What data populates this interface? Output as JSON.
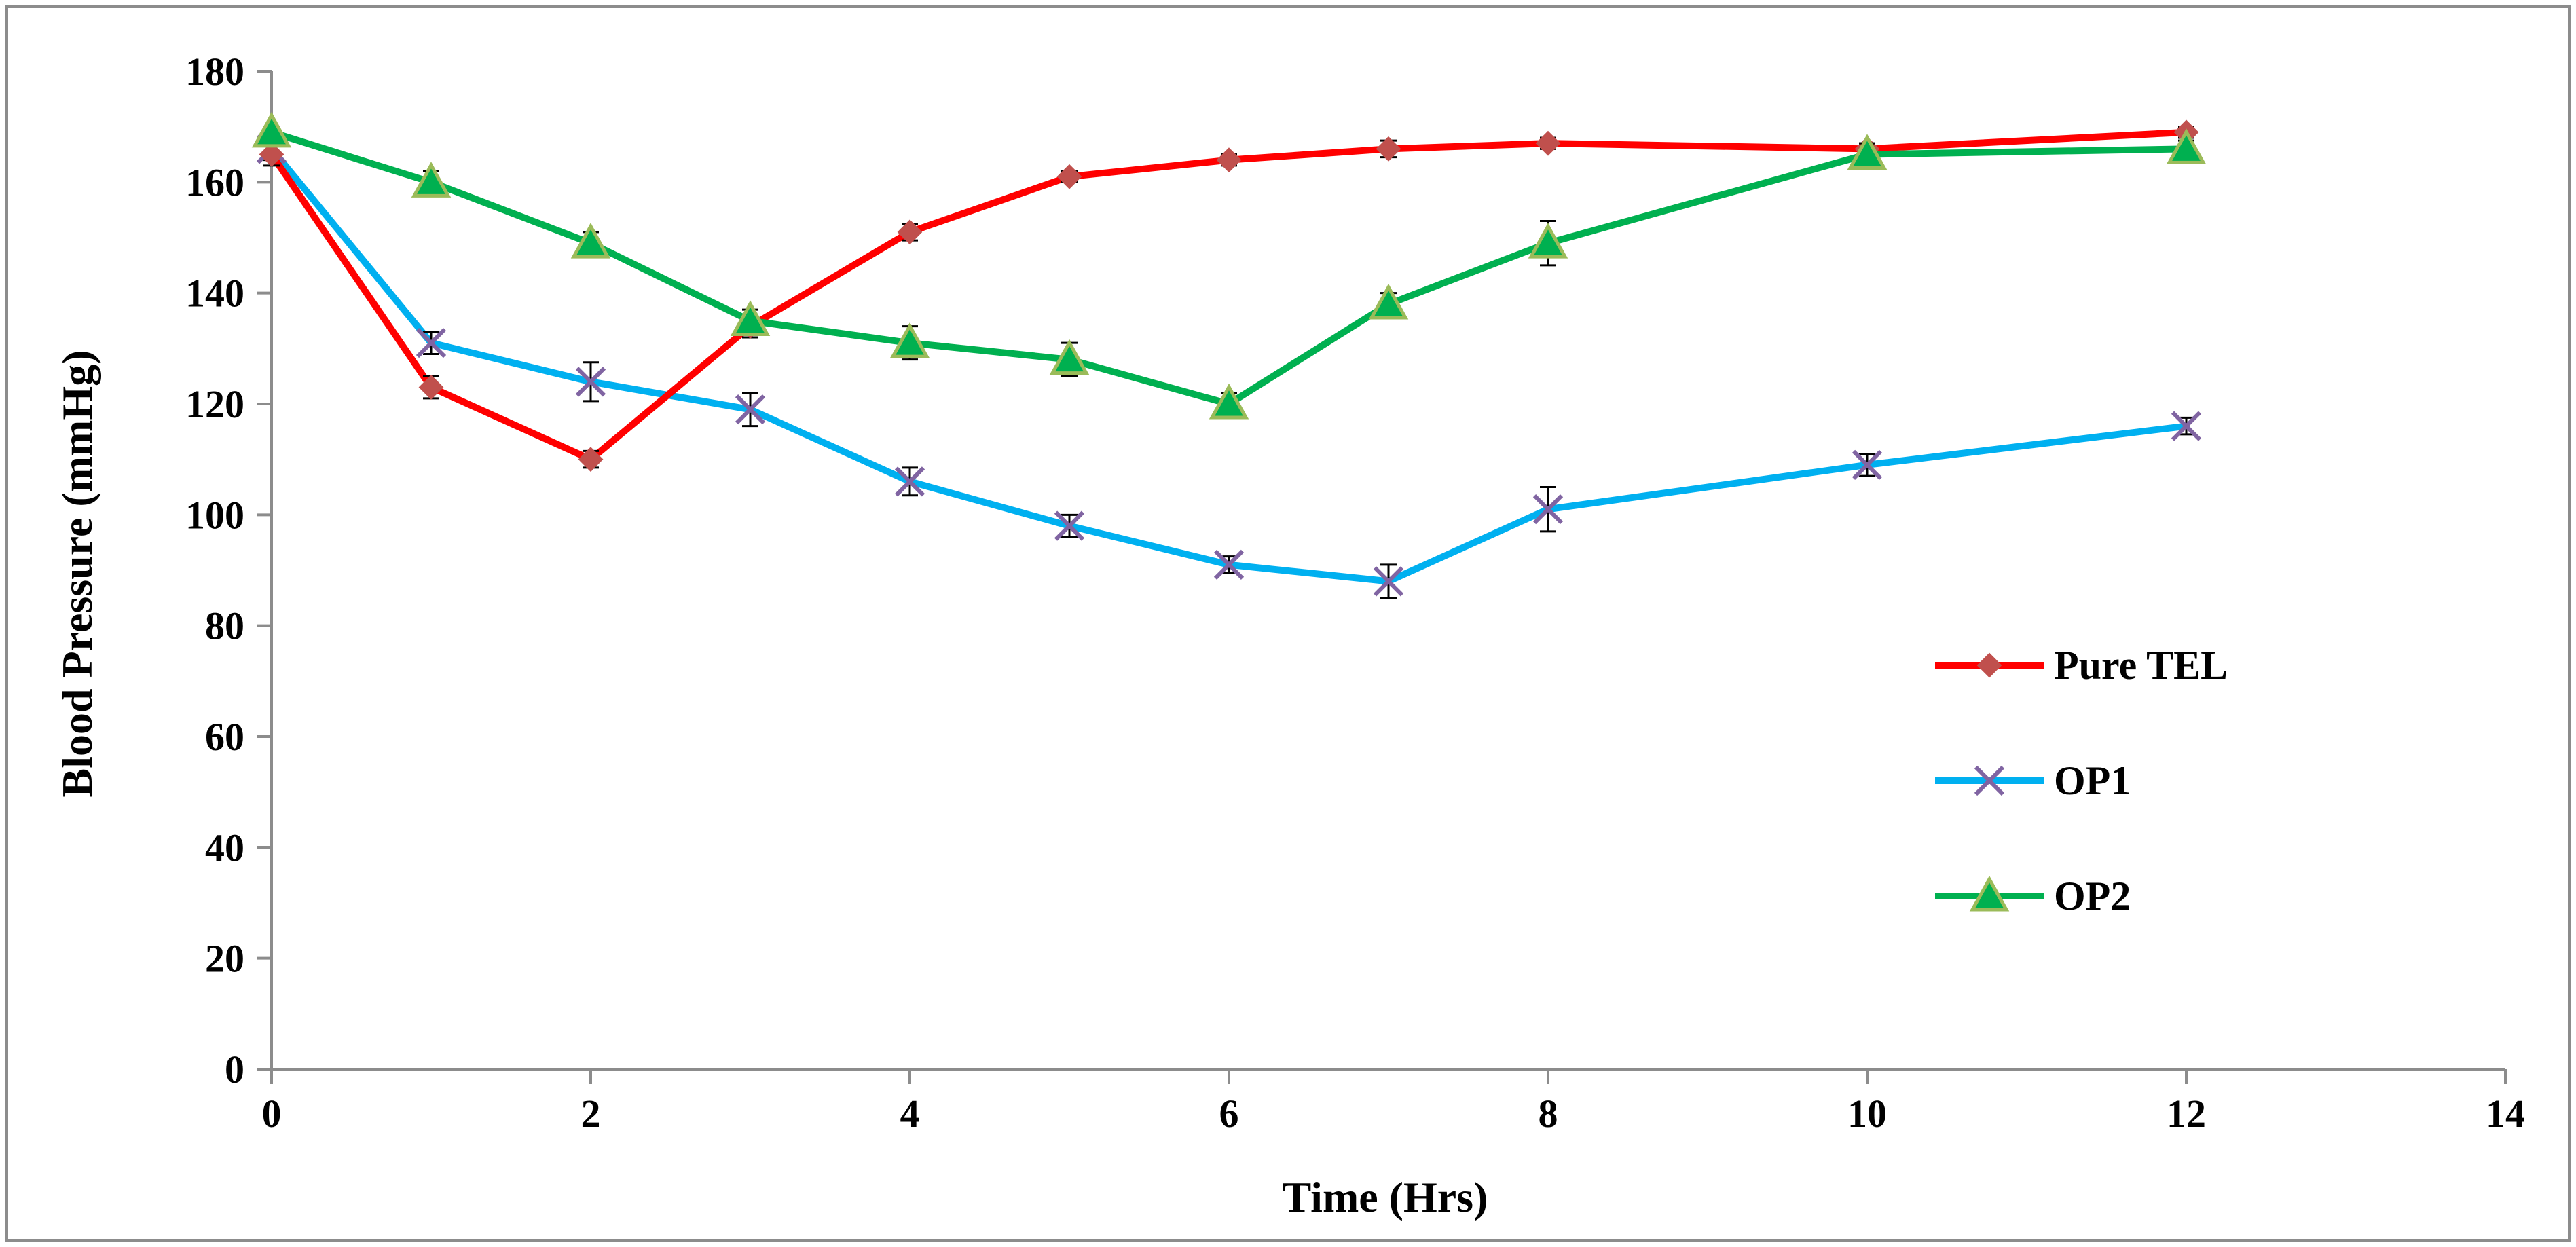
{
  "chart_data": {
    "type": "line",
    "title": "",
    "xlabel": "Time (Hrs)",
    "ylabel": "Blood  Pressure (mmHg)",
    "xlim": [
      0,
      14
    ],
    "ylim": [
      0,
      180
    ],
    "xticks": [
      0,
      2,
      4,
      6,
      8,
      10,
      12,
      14
    ],
    "yticks": [
      0,
      20,
      40,
      60,
      80,
      100,
      120,
      140,
      160,
      180
    ],
    "grid": false,
    "legend_position": "right",
    "series": [
      {
        "name": "Pure TEL",
        "color": "#ff0000",
        "marker": "diamond",
        "marker_color": "#c0504d",
        "x": [
          0,
          1,
          2,
          3,
          4,
          5,
          6,
          7,
          8,
          10,
          12
        ],
        "values": [
          165,
          123,
          110,
          134,
          151,
          161,
          164,
          166,
          167,
          166,
          169
        ],
        "errors": [
          2,
          2,
          1.5,
          2,
          1.5,
          1,
          1,
          1.5,
          1,
          1,
          1
        ]
      },
      {
        "name": "OP1",
        "color": "#00b0f0",
        "marker": "x",
        "marker_color": "#8064a2",
        "x": [
          0,
          1,
          2,
          3,
          4,
          5,
          6,
          7,
          8,
          10,
          12
        ],
        "values": [
          166,
          131,
          124,
          119,
          106,
          98,
          91,
          88,
          101,
          109,
          116
        ],
        "errors": [
          2,
          2,
          3.5,
          3,
          2.5,
          2,
          1.5,
          3,
          4,
          2,
          1.5
        ]
      },
      {
        "name": "OP2",
        "color": "#00b050",
        "marker": "triangle",
        "marker_color": "#9bbb59",
        "x": [
          0,
          1,
          2,
          3,
          4,
          5,
          6,
          7,
          8,
          10,
          12
        ],
        "values": [
          169,
          160,
          149,
          135,
          131,
          128,
          120,
          138,
          149,
          165,
          166
        ],
        "errors": [
          1,
          2,
          2,
          2,
          3,
          3,
          2,
          2,
          4,
          2,
          1.5
        ]
      }
    ]
  }
}
